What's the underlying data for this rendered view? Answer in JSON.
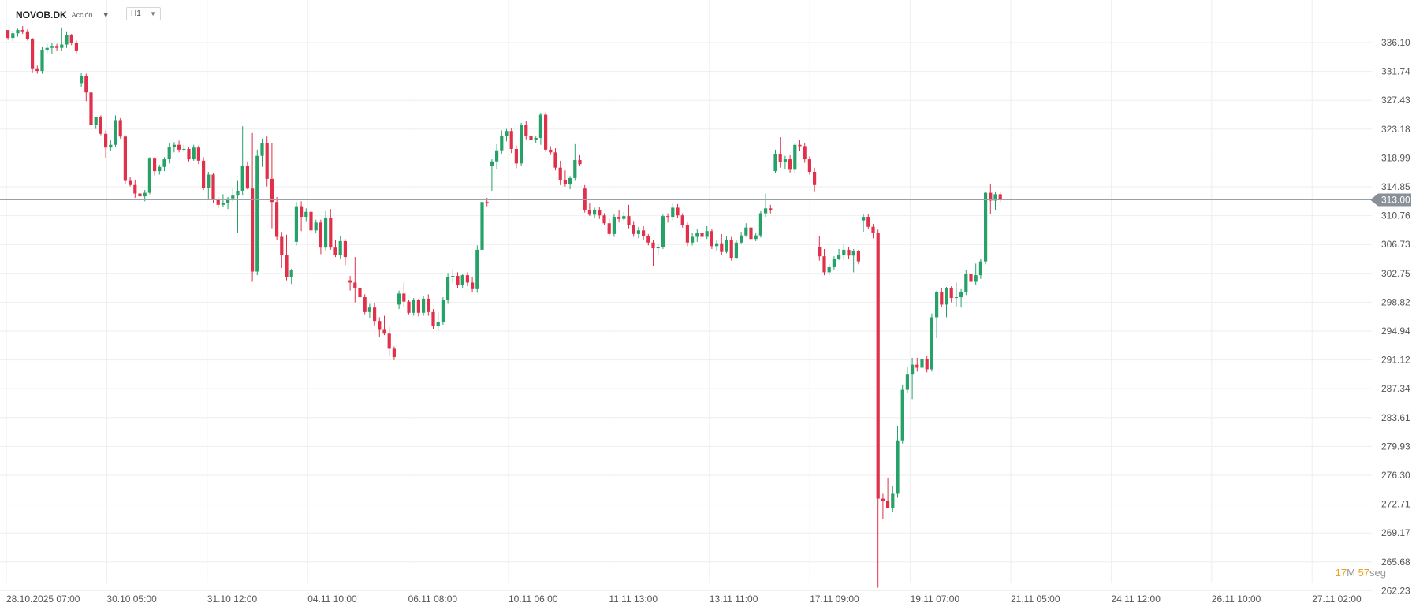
{
  "header": {
    "symbol": "NOVOB.DK",
    "asset_type": "Acción",
    "timeframe": "H1"
  },
  "countdown": {
    "minutes": "17",
    "minutes_unit": "M",
    "seconds": "57",
    "seconds_unit": "seg"
  },
  "colors": {
    "up": "#26a269",
    "down": "#e0304a",
    "wick": "#555555",
    "grid": "#eeeeee",
    "current_price_line": "#9aa0a6",
    "current_price_bg": "#8a9097",
    "countdown_num": "#f0a020"
  },
  "chart_data": {
    "type": "candlestick",
    "y_axis_ticks": [
      "336.10",
      "331.74",
      "327.43",
      "323.18",
      "318.99",
      "314.85",
      "310.76",
      "306.73",
      "302.75",
      "298.82",
      "294.94",
      "291.12",
      "287.34",
      "283.61",
      "279.93",
      "276.30",
      "272.71",
      "269.17",
      "265.68",
      "262.23"
    ],
    "x_axis_ticks": [
      "28.10.2025  07:00",
      "30.10  05:00",
      "31.10  12:00",
      "04.11  10:00",
      "06.11  08:00",
      "10.11  06:00",
      "11.11  13:00",
      "13.11  11:00",
      "17.11  09:00",
      "19.11  07:00",
      "21.11  05:00",
      "24.11  12:00",
      "26.11  10:00",
      "27.11  02:00"
    ],
    "current_price": 313.0,
    "current_price_label": "313.00",
    "candles": [
      [
        338.0,
        337.8,
        336.5,
        336.8
      ],
      [
        336.8,
        337.9,
        336.3,
        337.5
      ],
      [
        337.5,
        338.2,
        337.0,
        338.0
      ],
      [
        338.0,
        338.6,
        337.4,
        337.8
      ],
      [
        337.8,
        338.1,
        336.4,
        336.6
      ],
      [
        336.6,
        336.8,
        331.6,
        332.2
      ],
      [
        332.2,
        332.6,
        331.4,
        331.8
      ],
      [
        331.8,
        335.5,
        331.4,
        335.0
      ],
      [
        335.0,
        335.9,
        334.5,
        335.3
      ],
      [
        335.3,
        336.0,
        334.4,
        335.6
      ],
      [
        335.6,
        335.9,
        334.8,
        335.3
      ],
      [
        335.3,
        338.4,
        334.8,
        335.8
      ],
      [
        335.8,
        337.8,
        335.3,
        337.2
      ],
      [
        337.2,
        337.4,
        335.7,
        336.1
      ],
      [
        336.1,
        336.4,
        334.5,
        334.8
      ],
      [
        330.0,
        331.5,
        329.4,
        331.0
      ],
      [
        331.0,
        331.4,
        327.3,
        328.6
      ],
      [
        328.6,
        329.0,
        323.5,
        323.8
      ],
      [
        323.8,
        325.0,
        323.2,
        324.9
      ],
      [
        324.9,
        325.2,
        322.3,
        322.5
      ],
      [
        322.5,
        323.0,
        319.0,
        320.5
      ],
      [
        320.5,
        321.6,
        320.0,
        320.9
      ],
      [
        320.9,
        325.2,
        320.6,
        324.5
      ],
      [
        324.5,
        324.8,
        321.8,
        322.1
      ],
      [
        322.1,
        322.3,
        315.3,
        315.7
      ],
      [
        315.7,
        316.3,
        314.9,
        315.1
      ],
      [
        315.1,
        315.8,
        313.3,
        313.9
      ],
      [
        313.9,
        314.6,
        313.0,
        313.5
      ],
      [
        313.5,
        314.4,
        312.8,
        314.0
      ],
      [
        314.0,
        319.1,
        313.8,
        318.9
      ],
      [
        318.9,
        319.1,
        316.5,
        317.1
      ],
      [
        317.1,
        318.0,
        316.6,
        317.7
      ],
      [
        317.7,
        319.1,
        317.1,
        318.8
      ],
      [
        318.8,
        321.2,
        318.2,
        320.6
      ],
      [
        320.6,
        321.3,
        319.8,
        320.9
      ],
      [
        320.9,
        321.5,
        319.8,
        320.2
      ],
      [
        320.2,
        320.9,
        319.9,
        320.3
      ],
      [
        320.3,
        320.5,
        318.5,
        318.8
      ],
      [
        318.8,
        320.9,
        318.6,
        320.5
      ],
      [
        320.5,
        320.8,
        318.1,
        318.6
      ],
      [
        318.6,
        319.1,
        314.4,
        314.7
      ],
      [
        314.7,
        317.0,
        313.1,
        316.6
      ],
      [
        316.6,
        316.8,
        312.5,
        313.1
      ],
      [
        313.1,
        313.4,
        311.8,
        312.3
      ],
      [
        312.3,
        313.8,
        312.0,
        312.6
      ],
      [
        312.6,
        313.4,
        311.7,
        313.2
      ],
      [
        313.2,
        314.6,
        312.8,
        313.6
      ],
      [
        313.6,
        315.7,
        308.4,
        314.3
      ],
      [
        314.3,
        323.6,
        313.6,
        317.8
      ],
      [
        317.8,
        318.5,
        314.5,
        314.6
      ],
      [
        314.6,
        322.6,
        301.6,
        303.0
      ],
      [
        303.0,
        320.2,
        302.5,
        319.3
      ],
      [
        319.3,
        321.8,
        317.7,
        321.1
      ],
      [
        321.1,
        322.1,
        314.9,
        316.0
      ],
      [
        316.0,
        321.2,
        309.0,
        312.7
      ],
      [
        312.7,
        313.4,
        307.3,
        307.8
      ],
      [
        307.8,
        308.5,
        303.5,
        305.3
      ],
      [
        305.3,
        308.1,
        301.8,
        302.3
      ],
      [
        302.3,
        303.4,
        301.3,
        303.2
      ],
      [
        307.1,
        312.7,
        306.6,
        312.1
      ],
      [
        312.1,
        312.8,
        308.6,
        310.6
      ],
      [
        310.6,
        311.8,
        309.9,
        311.3
      ],
      [
        311.3,
        311.8,
        308.3,
        308.7
      ],
      [
        308.7,
        310.2,
        308.4,
        309.8
      ],
      [
        309.8,
        310.2,
        305.4,
        306.3
      ],
      [
        306.3,
        311.4,
        305.9,
        310.5
      ],
      [
        310.5,
        311.7,
        306.0,
        306.3
      ],
      [
        306.3,
        307.3,
        305.0,
        305.3
      ],
      [
        305.3,
        307.9,
        304.7,
        307.2
      ],
      [
        307.2,
        307.5,
        303.9,
        305.0
      ],
      [
        301.8,
        302.4,
        300.4,
        301.5
      ],
      [
        301.5,
        305.0,
        298.8,
        300.7
      ],
      [
        300.7,
        301.1,
        299.1,
        299.5
      ],
      [
        299.5,
        299.9,
        297.1,
        297.5
      ],
      [
        297.5,
        298.6,
        296.7,
        298.1
      ],
      [
        298.1,
        298.7,
        295.7,
        296.3
      ],
      [
        296.3,
        296.8,
        294.1,
        295.1
      ],
      [
        295.1,
        297.0,
        294.4,
        294.6
      ],
      [
        294.6,
        295.5,
        291.6,
        292.6
      ],
      [
        292.6,
        292.9,
        291.1,
        291.5
      ],
      [
        298.5,
        300.4,
        297.9,
        300.0
      ],
      [
        300.0,
        301.5,
        298.2,
        298.9
      ],
      [
        298.9,
        299.2,
        297.1,
        297.4
      ],
      [
        297.4,
        299.4,
        297.0,
        299.1
      ],
      [
        299.1,
        299.3,
        296.9,
        297.4
      ],
      [
        297.4,
        299.7,
        297.0,
        299.3
      ],
      [
        299.3,
        299.9,
        297.0,
        297.5
      ],
      [
        297.5,
        297.9,
        295.2,
        295.6
      ],
      [
        295.6,
        297.5,
        295.0,
        296.2
      ],
      [
        296.2,
        299.5,
        295.8,
        299.1
      ],
      [
        299.1,
        302.8,
        298.6,
        302.3
      ],
      [
        302.3,
        303.3,
        301.4,
        302.4
      ],
      [
        302.4,
        302.9,
        300.8,
        301.2
      ],
      [
        301.2,
        302.7,
        300.7,
        302.5
      ],
      [
        302.5,
        302.9,
        301.0,
        301.5
      ],
      [
        301.5,
        302.3,
        300.2,
        300.6
      ],
      [
        300.6,
        306.6,
        300.1,
        306.0
      ],
      [
        306.0,
        313.5,
        305.6,
        312.7
      ],
      [
        312.7,
        313.3,
        312.1,
        312.6
      ],
      [
        317.8,
        318.8,
        314.3,
        318.5
      ],
      [
        318.5,
        321.0,
        317.4,
        320.1
      ],
      [
        320.1,
        323.0,
        319.6,
        322.2
      ],
      [
        322.2,
        323.2,
        321.4,
        322.9
      ],
      [
        322.9,
        323.3,
        319.7,
        320.3
      ],
      [
        320.3,
        320.8,
        317.5,
        318.2
      ],
      [
        318.2,
        324.1,
        317.9,
        323.8
      ],
      [
        323.8,
        324.4,
        321.7,
        322.2
      ],
      [
        322.2,
        322.7,
        321.2,
        321.6
      ],
      [
        321.6,
        322.1,
        321.1,
        321.9
      ],
      [
        321.9,
        325.6,
        320.9,
        325.3
      ],
      [
        325.3,
        325.6,
        319.9,
        320.2
      ],
      [
        320.2,
        320.7,
        319.4,
        319.8
      ],
      [
        319.8,
        320.4,
        317.2,
        317.6
      ],
      [
        317.6,
        318.6,
        315.1,
        315.8
      ],
      [
        315.8,
        317.2,
        314.9,
        315.2
      ],
      [
        315.2,
        316.4,
        314.5,
        316.1
      ],
      [
        316.1,
        321.0,
        315.7,
        318.7
      ],
      [
        318.7,
        319.4,
        317.8,
        318.1
      ],
      [
        314.6,
        315.1,
        311.2,
        311.6
      ],
      [
        311.6,
        312.6,
        310.7,
        310.9
      ],
      [
        310.9,
        311.9,
        310.5,
        311.6
      ],
      [
        311.6,
        312.0,
        310.3,
        310.8
      ],
      [
        310.8,
        311.1,
        309.5,
        309.7
      ],
      [
        309.7,
        310.5,
        307.9,
        308.2
      ],
      [
        308.2,
        311.0,
        307.8,
        310.6
      ],
      [
        310.6,
        311.6,
        309.8,
        310.3
      ],
      [
        310.3,
        311.3,
        310.0,
        310.7
      ],
      [
        310.7,
        312.3,
        309.0,
        309.5
      ],
      [
        309.5,
        309.9,
        307.8,
        308.2
      ],
      [
        308.2,
        309.2,
        307.6,
        308.7
      ],
      [
        308.7,
        309.3,
        307.3,
        307.9
      ],
      [
        307.9,
        308.2,
        306.6,
        307.0
      ],
      [
        307.0,
        307.4,
        303.8,
        306.2
      ],
      [
        306.2,
        306.9,
        305.2,
        306.4
      ],
      [
        306.4,
        310.9,
        306.1,
        310.7
      ],
      [
        310.7,
        311.1,
        309.8,
        310.6
      ],
      [
        310.6,
        312.5,
        310.1,
        311.9
      ],
      [
        311.9,
        312.4,
        310.5,
        310.8
      ],
      [
        310.8,
        311.1,
        309.1,
        309.5
      ],
      [
        309.5,
        309.8,
        306.5,
        307.0
      ],
      [
        307.0,
        308.3,
        306.6,
        307.8
      ],
      [
        307.8,
        308.9,
        307.1,
        308.4
      ],
      [
        308.4,
        309.0,
        307.3,
        307.8
      ],
      [
        307.8,
        309.3,
        307.5,
        308.6
      ],
      [
        308.6,
        308.9,
        306.1,
        306.5
      ],
      [
        306.5,
        307.3,
        305.9,
        306.9
      ],
      [
        306.9,
        308.2,
        305.3,
        305.7
      ],
      [
        305.7,
        307.9,
        305.5,
        307.4
      ],
      [
        307.4,
        307.8,
        304.5,
        304.9
      ],
      [
        304.9,
        307.4,
        304.7,
        307.0
      ],
      [
        307.0,
        308.5,
        306.8,
        308.0
      ],
      [
        308.0,
        309.7,
        307.8,
        309.1
      ],
      [
        309.1,
        309.5,
        307.0,
        307.5
      ],
      [
        307.5,
        308.3,
        307.2,
        308.0
      ],
      [
        308.0,
        311.4,
        307.7,
        311.1
      ],
      [
        311.1,
        313.9,
        310.6,
        311.8
      ],
      [
        311.8,
        312.3,
        311.1,
        311.5
      ],
      [
        317.1,
        320.2,
        316.8,
        319.6
      ],
      [
        319.6,
        322.0,
        317.6,
        318.4
      ],
      [
        318.4,
        319.3,
        317.4,
        318.8
      ],
      [
        318.8,
        319.4,
        316.9,
        317.3
      ],
      [
        317.3,
        321.2,
        316.8,
        320.9
      ],
      [
        320.9,
        321.6,
        320.0,
        320.7
      ],
      [
        320.7,
        321.1,
        318.3,
        318.8
      ],
      [
        318.8,
        319.2,
        316.6,
        317.0
      ],
      [
        317.0,
        317.6,
        314.2,
        315.1
      ],
      [
        306.4,
        307.9,
        304.5,
        305.1
      ],
      [
        305.1,
        306.1,
        302.5,
        302.9
      ],
      [
        302.9,
        304.1,
        302.5,
        303.6
      ],
      [
        303.6,
        305.1,
        303.3,
        304.8
      ],
      [
        304.8,
        306.1,
        304.6,
        305.3
      ],
      [
        305.3,
        306.8,
        304.6,
        306.0
      ],
      [
        306.0,
        306.4,
        304.8,
        305.2
      ],
      [
        305.2,
        306.1,
        302.9,
        305.8
      ],
      [
        305.8,
        306.0,
        304.0,
        304.4
      ],
      [
        310.1,
        311.0,
        308.5,
        310.6
      ],
      [
        310.6,
        311.0,
        308.9,
        309.2
      ],
      [
        309.2,
        309.6,
        307.6,
        308.4
      ],
      [
        308.4,
        308.8,
        262.6,
        273.4
      ],
      [
        273.4,
        274.0,
        270.9,
        273.1
      ],
      [
        273.1,
        276.0,
        272.2,
        272.2
      ],
      [
        272.2,
        275.0,
        271.7,
        274.0
      ],
      [
        274.0,
        282.5,
        273.5,
        280.7
      ],
      [
        280.7,
        287.8,
        280.3,
        287.2
      ],
      [
        287.2,
        290.2,
        286.8,
        289.2
      ],
      [
        289.2,
        291.4,
        286.0,
        290.5
      ],
      [
        290.5,
        291.4,
        289.6,
        290.1
      ],
      [
        290.1,
        292.5,
        288.6,
        291.2
      ],
      [
        291.2,
        291.6,
        289.5,
        289.9
      ],
      [
        289.9,
        297.3,
        289.6,
        296.8
      ],
      [
        296.8,
        300.4,
        294.0,
        300.2
      ],
      [
        300.2,
        300.8,
        298.2,
        298.5
      ],
      [
        298.5,
        300.9,
        296.8,
        300.7
      ],
      [
        300.7,
        301.0,
        298.8,
        299.4
      ],
      [
        299.4,
        301.5,
        298.2,
        299.5
      ],
      [
        299.5,
        300.6,
        298.1,
        300.2
      ],
      [
        300.2,
        303.2,
        299.8,
        302.7
      ],
      [
        302.7,
        305.1,
        300.8,
        301.6
      ],
      [
        301.6,
        304.1,
        301.2,
        302.5
      ],
      [
        302.5,
        304.8,
        302.0,
        304.4
      ],
      [
        304.4,
        314.2,
        304.0,
        314.0
      ],
      [
        314.0,
        315.2,
        311.0,
        312.9
      ],
      [
        312.9,
        314.2,
        311.6,
        313.8
      ],
      [
        313.8,
        314.1,
        312.7,
        313.0
      ]
    ]
  }
}
